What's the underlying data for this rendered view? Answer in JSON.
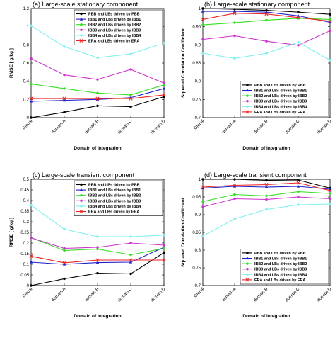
{
  "chart_data": [
    {
      "type": "line",
      "title": "(a) Large-scale stationary component",
      "xlabel": "Domain of integration",
      "ylabel": "RMSE [ g/kg ]",
      "categories": [
        "Global",
        "domain A",
        "domain B",
        "domain C",
        "domain D"
      ],
      "ylim": [
        0,
        1.2
      ],
      "yticks": [
        "0",
        "0.2",
        "0.4",
        "0.6",
        "0.8",
        "1",
        "1.2"
      ],
      "legend_position": "top-right",
      "series": [
        {
          "name": "PBB and LBs driven by PBB",
          "color": "#000000",
          "marker": "dot",
          "values": [
            0.0,
            0.06,
            0.13,
            0.12,
            0.23
          ]
        },
        {
          "name": "IBB1 and LBs driven by IBB1",
          "color": "#1f1fcc",
          "marker": "triangle",
          "values": [
            0.18,
            0.19,
            0.2,
            0.22,
            0.32
          ]
        },
        {
          "name": "IBB2 and LBs driven by IBB2",
          "color": "#33dd22",
          "marker": "dot",
          "values": [
            0.37,
            0.32,
            0.27,
            0.25,
            0.36
          ]
        },
        {
          "name": "IBB3 and LBs driven by IBB3",
          "color": "#cc33cc",
          "marker": "dot",
          "values": [
            0.65,
            0.47,
            0.42,
            0.53,
            0.38
          ]
        },
        {
          "name": "IBB4 and LBs driven by IBB4",
          "color": "#7ff0ee",
          "marker": "dot",
          "values": [
            1.01,
            0.78,
            0.66,
            0.7,
            0.82
          ]
        },
        {
          "name": "ERA and LBs driven by ERA",
          "color": "#ee2222",
          "marker": "x",
          "values": [
            0.21,
            0.21,
            0.21,
            0.21,
            0.25
          ]
        }
      ]
    },
    {
      "type": "line",
      "title": "(b) Large-scale stationary component",
      "xlabel": "Domain of integration",
      "ylabel": "Squared Correlation Coefficient",
      "categories": [
        "Global",
        "domain A",
        "domain B",
        "domain C",
        "domain D"
      ],
      "ylim": [
        0.7,
        1
      ],
      "yticks": [
        "0.7",
        "0.75",
        "0.8",
        "0.85",
        "0.9",
        "0.95",
        "1"
      ],
      "legend_position": "bottom-right",
      "series": [
        {
          "name": "PBB and LBs driven by PBB",
          "color": "#000000",
          "marker": "dot",
          "values": [
            1.0,
            0.998,
            0.995,
            0.99,
            0.984
          ]
        },
        {
          "name": "IBB1 and LBs driven by IBB1",
          "color": "#1f1fcc",
          "marker": "triangle",
          "values": [
            0.992,
            0.992,
            0.99,
            0.98,
            0.962
          ]
        },
        {
          "name": "IBB2 and LBs driven by IBB2",
          "color": "#33dd22",
          "marker": "dot",
          "values": [
            0.955,
            0.961,
            0.968,
            0.973,
            0.97
          ]
        },
        {
          "name": "IBB3 and LBs driven by IBB3",
          "color": "#cc33cc",
          "marker": "dot",
          "values": [
            0.915,
            0.925,
            0.91,
            0.899,
            0.939
          ]
        },
        {
          "name": "IBB4 and LBs driven by IBB4",
          "color": "#7ff0ee",
          "marker": "dot",
          "values": [
            0.877,
            0.863,
            0.877,
            0.907,
            0.858
          ]
        },
        {
          "name": "ERA and LBs driven by ERA",
          "color": "#ee2222",
          "marker": "x",
          "values": [
            0.97,
            0.987,
            0.985,
            0.975,
            0.965
          ]
        }
      ]
    },
    {
      "type": "line",
      "title": "(c) Large-scale transient component",
      "xlabel": "Domain of integration",
      "ylabel": "RMSE [ g/kg ]",
      "categories": [
        "Global",
        "domain A",
        "domain B",
        "domain C",
        "domain D"
      ],
      "ylim": [
        0,
        0.5
      ],
      "yticks": [
        "0",
        "0.05",
        "0.1",
        "0.15",
        "0.2",
        "0.25",
        "0.3",
        "0.35",
        "0.4",
        "0.45",
        "0.5"
      ],
      "legend_position": "top-right",
      "series": [
        {
          "name": "PBB and LBs driven by PBB",
          "color": "#000000",
          "marker": "dot",
          "values": [
            0.0,
            0.032,
            0.058,
            0.055,
            0.155
          ]
        },
        {
          "name": "IBB1 and LBs driven by IBB1",
          "color": "#1f1fcc",
          "marker": "triangle",
          "values": [
            0.11,
            0.1,
            0.108,
            0.11,
            0.18
          ]
        },
        {
          "name": "IBB2 and LBs driven by IBB2",
          "color": "#33dd22",
          "marker": "dot",
          "values": [
            0.225,
            0.165,
            0.172,
            0.145,
            0.175
          ]
        },
        {
          "name": "IBB3 and LBs driven by IBB3",
          "color": "#cc33cc",
          "marker": "dot",
          "values": [
            0.225,
            0.175,
            0.18,
            0.2,
            0.19
          ]
        },
        {
          "name": "IBB4 and LBs driven by IBB4",
          "color": "#7ff0ee",
          "marker": "dot",
          "values": [
            0.378,
            0.265,
            0.23,
            0.23,
            0.237
          ]
        },
        {
          "name": "ERA and LBs driven by ERA",
          "color": "#ee2222",
          "marker": "x",
          "values": [
            0.138,
            0.107,
            0.12,
            0.12,
            0.12
          ]
        }
      ]
    },
    {
      "type": "line",
      "title": "(d) Large-scale transient component",
      "xlabel": "Domain of integration",
      "ylabel": "Squared Correlation Coefficient",
      "categories": [
        "Global",
        "domain A",
        "domain B",
        "domain C",
        "domain D"
      ],
      "ylim": [
        0.7,
        1
      ],
      "yticks": [
        "0.7",
        "0.75",
        "0.8",
        "0.85",
        "0.9",
        "0.95",
        "1"
      ],
      "legend_position": "bottom-right",
      "series": [
        {
          "name": "PBB and LBs driven by PBB",
          "color": "#000000",
          "marker": "dot",
          "values": [
            1.0,
            1.0,
            0.997,
            0.998,
            0.975
          ]
        },
        {
          "name": "IBB1 and LBs driven by IBB1",
          "color": "#1f1fcc",
          "marker": "triangle",
          "values": [
            0.975,
            0.98,
            0.978,
            0.98,
            0.972
          ]
        },
        {
          "name": "IBB2 and LBs driven by IBB2",
          "color": "#33dd22",
          "marker": "dot",
          "values": [
            0.937,
            0.957,
            0.953,
            0.965,
            0.96
          ]
        },
        {
          "name": "IBB3 and LBs driven by IBB3",
          "color": "#cc33cc",
          "marker": "dot",
          "values": [
            0.922,
            0.945,
            0.943,
            0.95,
            0.945
          ]
        },
        {
          "name": "IBB4 and LBs driven by IBB4",
          "color": "#7ff0ee",
          "marker": "dot",
          "values": [
            0.84,
            0.888,
            0.915,
            0.928,
            0.93
          ]
        },
        {
          "name": "ERA and LBs driven by ERA",
          "color": "#ee2222",
          "marker": "x",
          "values": [
            0.978,
            0.983,
            0.985,
            0.99,
            0.968
          ]
        }
      ]
    }
  ]
}
